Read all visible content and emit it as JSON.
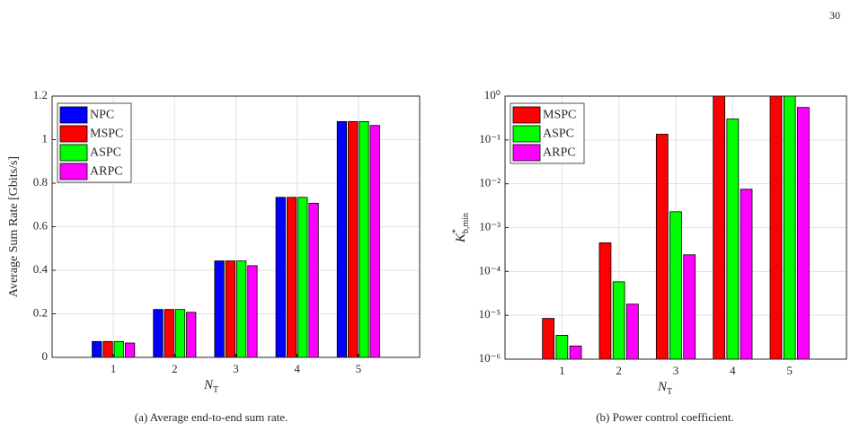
{
  "page_number": "30",
  "chart_data": [
    {
      "type": "bar",
      "caption": "(a)  Average end-to-end sum rate.",
      "x_label": {
        "base": "N",
        "sub": "T"
      },
      "y_label": "Average Sum Rate [Gbits/s]",
      "x": [
        1,
        2,
        3,
        4,
        5
      ],
      "xlim": [
        0,
        6
      ],
      "xticks": [
        1,
        2,
        3,
        4,
        5
      ],
      "ylim": [
        0,
        1.2
      ],
      "yticks": [
        0,
        0.2,
        0.4,
        0.6,
        0.8,
        1,
        1.2
      ],
      "log_y": false,
      "grid": true,
      "legend": "upper-left",
      "series": [
        {
          "name": "NPC",
          "color": "#0000ff",
          "values": [
            0.073,
            0.22,
            0.443,
            0.735,
            1.083
          ]
        },
        {
          "name": "MSPC",
          "color": "#ff0000",
          "values": [
            0.073,
            0.22,
            0.443,
            0.735,
            1.083
          ]
        },
        {
          "name": "ASPC",
          "color": "#00ff00",
          "values": [
            0.073,
            0.22,
            0.443,
            0.735,
            1.083
          ]
        },
        {
          "name": "ARPC",
          "color": "#ff00ff",
          "values": [
            0.066,
            0.207,
            0.421,
            0.708,
            1.065
          ]
        }
      ]
    },
    {
      "type": "bar",
      "caption": "(b)  Power control coefficient.",
      "x_label": {
        "base": "N",
        "sub": "T"
      },
      "y_label": {
        "base": "K",
        "sup": "*",
        "sub": "b,min"
      },
      "x": [
        1,
        2,
        3,
        4,
        5
      ],
      "xlim": [
        0,
        6
      ],
      "xticks": [
        1,
        2,
        3,
        4,
        5
      ],
      "ylim": [
        1e-06,
        1
      ],
      "yticks": [
        {
          "value": 1e-06,
          "label": "10⁻⁶"
        },
        {
          "value": 1e-05,
          "label": "10⁻⁵"
        },
        {
          "value": 0.0001,
          "label": "10⁻⁴"
        },
        {
          "value": 0.001,
          "label": "10⁻³"
        },
        {
          "value": 0.01,
          "label": "10⁻²"
        },
        {
          "value": 0.1,
          "label": "10⁻¹"
        },
        {
          "value": 1,
          "label": "10⁰"
        }
      ],
      "log_y": true,
      "grid": true,
      "legend": "upper-left",
      "series": [
        {
          "name": "MSPC",
          "color": "#ff0000",
          "values": [
            8.5e-06,
            0.00045,
            0.135,
            1,
            1
          ]
        },
        {
          "name": "ASPC",
          "color": "#00ff00",
          "values": [
            3.5e-06,
            5.8e-05,
            0.0023,
            0.3,
            1
          ]
        },
        {
          "name": "ARPC",
          "color": "#ff00ff",
          "values": [
            2e-06,
            1.8e-05,
            0.00024,
            0.0075,
            0.55
          ]
        }
      ]
    }
  ]
}
